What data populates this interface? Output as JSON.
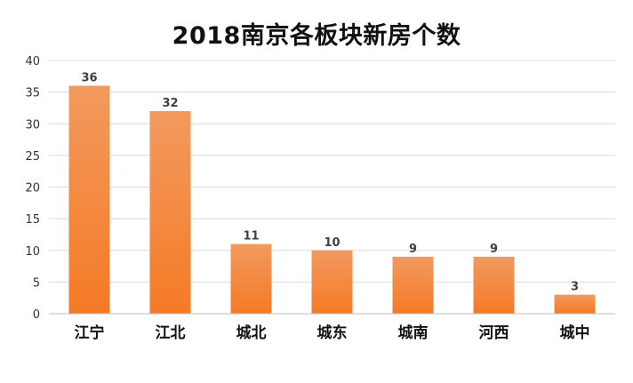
{
  "chart_data": {
    "type": "bar",
    "title": "2018南京各板块新房个数",
    "xlabel": "",
    "ylabel": "",
    "categories": [
      "江宁",
      "江北",
      "城北",
      "城东",
      "城南",
      "河西",
      "城中"
    ],
    "values": [
      36,
      32,
      11,
      10,
      9,
      9,
      3
    ],
    "ylim": [
      0,
      40
    ],
    "yticks": [
      0,
      5,
      10,
      15,
      20,
      25,
      30,
      35,
      40
    ],
    "grid": true,
    "legend": "none",
    "data_labels": [
      "36",
      "32",
      "11",
      "10",
      "9",
      "9",
      "3"
    ],
    "colors": {
      "bar_top": "#F29A5E",
      "bar_bottom": "#F57A26",
      "grid": "#D9D9D9",
      "axis": "#BFBFBF"
    }
  }
}
